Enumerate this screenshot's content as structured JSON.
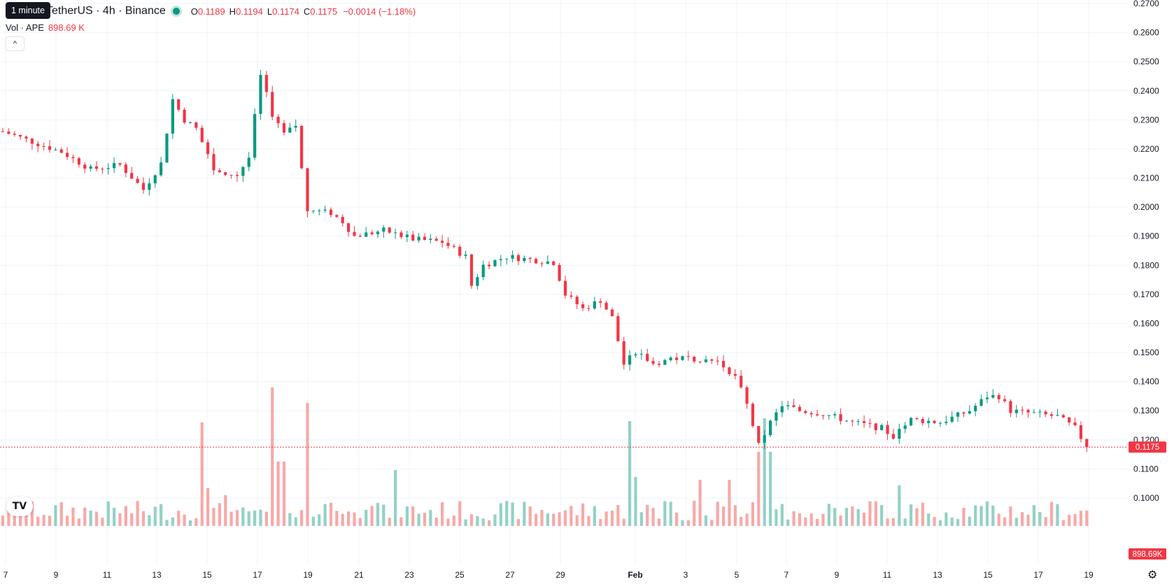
{
  "header": {
    "symbol_title": "TetherUS · 4h · Binance",
    "tooltip": "1 minute",
    "open_label": "O",
    "open": "0.1189",
    "high_label": "H",
    "high": "0.1194",
    "low_label": "L",
    "low": "0.1174",
    "close_label": "C",
    "close": "0.1175",
    "change": "−0.0014 (−1.18%)",
    "volume_label": "Vol · APE",
    "volume_value": "898.69 K",
    "collapse_symbol": "^"
  },
  "price_label": "0.1175",
  "volume_label": "898.69K",
  "logo_text": "TV",
  "settings_icon": "⚙",
  "colors": {
    "up": "#089981",
    "down": "#f23645",
    "up_vol": "#93d1c6",
    "down_vol": "#f7a9a7",
    "grid": "#f0f3fa"
  },
  "chart_data": {
    "type": "candlestick",
    "timeframe": "4h",
    "x_ticks": [
      "7",
      "9",
      "11",
      "13",
      "15",
      "17",
      "19",
      "21",
      "23",
      "25",
      "27",
      "29",
      "Feb",
      "3",
      "5",
      "7",
      "9",
      "11",
      "13",
      "15",
      "17",
      "19"
    ],
    "y_ticks": [
      "0.2700",
      "0.2600",
      "0.2500",
      "0.2400",
      "0.2300",
      "0.2200",
      "0.2100",
      "0.2000",
      "0.1900",
      "0.1800",
      "0.1700",
      "0.1600",
      "0.1500",
      "0.1400",
      "0.1300",
      "0.1200",
      "0.1100",
      "0.1000"
    ],
    "ylim": [
      0.0915,
      0.2705
    ],
    "last_price": 0.1175,
    "trend": [
      [
        0,
        0.226
      ],
      [
        10,
        0.219
      ],
      [
        15,
        0.213
      ],
      [
        20,
        0.2145
      ],
      [
        24,
        0.206
      ],
      [
        27,
        0.215
      ],
      [
        29,
        0.237
      ],
      [
        31,
        0.23
      ],
      [
        33,
        0.227
      ],
      [
        36,
        0.213
      ],
      [
        40,
        0.211
      ],
      [
        42,
        0.217
      ],
      [
        44,
        0.245
      ],
      [
        46,
        0.232
      ],
      [
        48,
        0.225
      ],
      [
        50,
        0.228
      ],
      [
        51,
        0.213
      ],
      [
        52,
        0.199
      ],
      [
        56,
        0.198
      ],
      [
        58,
        0.195
      ],
      [
        60,
        0.19
      ],
      [
        65,
        0.192
      ],
      [
        70,
        0.189
      ],
      [
        75,
        0.188
      ],
      [
        79,
        0.183
      ],
      [
        80,
        0.173
      ],
      [
        82,
        0.18
      ],
      [
        86,
        0.183
      ],
      [
        90,
        0.182
      ],
      [
        94,
        0.181
      ],
      [
        96,
        0.17
      ],
      [
        99,
        0.165
      ],
      [
        102,
        0.168
      ],
      [
        104,
        0.162
      ],
      [
        106,
        0.146
      ],
      [
        108,
        0.15
      ],
      [
        111,
        0.146
      ],
      [
        114,
        0.148
      ],
      [
        118,
        0.148
      ],
      [
        122,
        0.147
      ],
      [
        125,
        0.142
      ],
      [
        127,
        0.132
      ],
      [
        129,
        0.118
      ],
      [
        131,
        0.126
      ],
      [
        133,
        0.132
      ],
      [
        136,
        0.13
      ],
      [
        140,
        0.129
      ],
      [
        145,
        0.126
      ],
      [
        150,
        0.124
      ],
      [
        152,
        0.121
      ],
      [
        155,
        0.127
      ],
      [
        160,
        0.126
      ],
      [
        165,
        0.13
      ],
      [
        168,
        0.135
      ],
      [
        170,
        0.135
      ],
      [
        172,
        0.13
      ],
      [
        176,
        0.129
      ],
      [
        180,
        0.128
      ],
      [
        183,
        0.124
      ],
      [
        185,
        0.1175
      ]
    ],
    "volume_spikes": [
      [
        34,
        0.74
      ],
      [
        35,
        0.27
      ],
      [
        38,
        0.22
      ],
      [
        46,
        0.99
      ],
      [
        47,
        0.46
      ],
      [
        48,
        0.46
      ],
      [
        52,
        0.88
      ],
      [
        67,
        0.4
      ],
      [
        107,
        0.75
      ],
      [
        108,
        0.35
      ],
      [
        129,
        0.53
      ],
      [
        130,
        0.77
      ],
      [
        131,
        0.53
      ],
      [
        119,
        0.33
      ],
      [
        124,
        0.33
      ],
      [
        153,
        0.29
      ]
    ]
  }
}
